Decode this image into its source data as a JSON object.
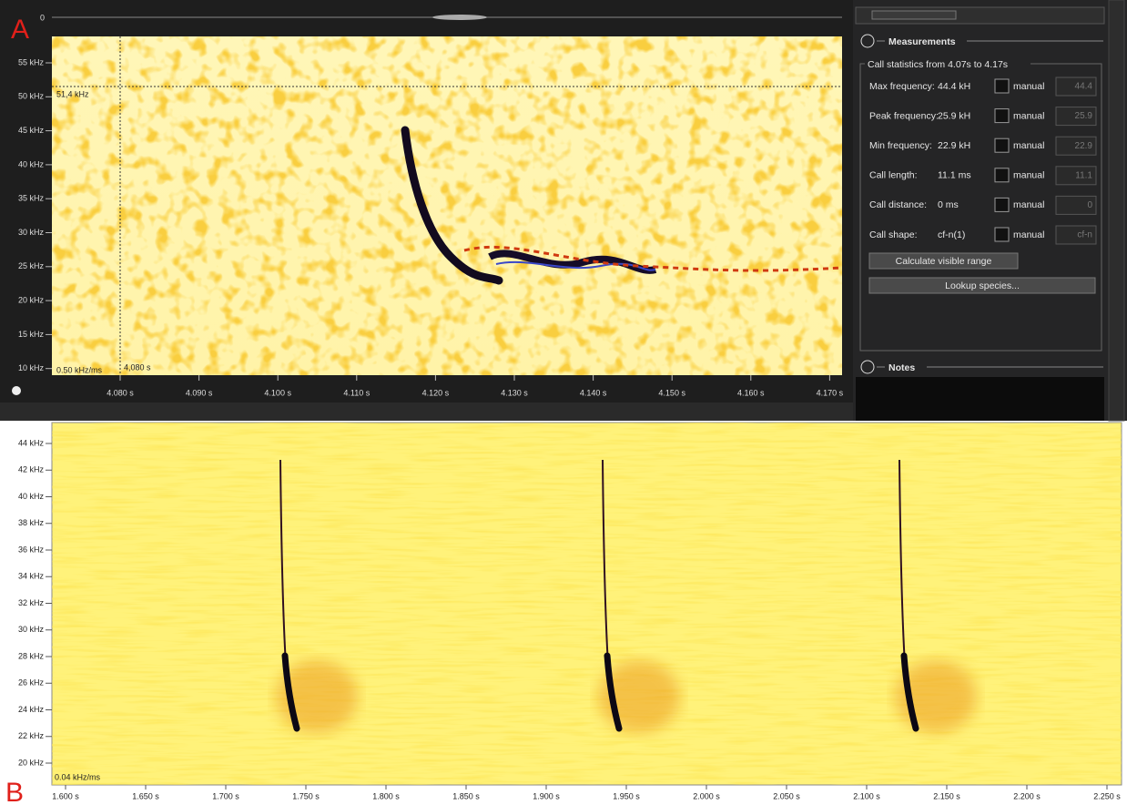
{
  "labels": {
    "panel_a": "A",
    "panel_b": "B"
  },
  "spectrogram_a": {
    "waveform_zero": "0",
    "y_ticks": [
      "55 kHz",
      "50 kHz",
      "45 kHz",
      "40 kHz",
      "35 kHz",
      "30 kHz",
      "25 kHz",
      "20 kHz",
      "15 kHz",
      "10 kHz"
    ],
    "x_ticks": [
      "4.080 s",
      "4.090 s",
      "4.100 s",
      "4.110 s",
      "4.120 s",
      "4.130 s",
      "4.140 s",
      "4.150 s",
      "4.160 s",
      "4.170 s"
    ],
    "cursor_frequency": "51,4 kHz",
    "cursor_time": "4,080 s",
    "scale": "0.50 kHz/ms"
  },
  "measurements": {
    "title": "Measurements",
    "range": "Call statistics from 4.07s to 4.17s",
    "rows": [
      {
        "label": "Max frequency:",
        "value": "44.4 kH",
        "manual": "manual",
        "input": "44.4"
      },
      {
        "label": "Peak frequency:",
        "value": "25.9 kH",
        "manual": "manual",
        "input": "25.9"
      },
      {
        "label": "Min frequency:",
        "value": "22.9 kH",
        "manual": "manual",
        "input": "22.9"
      },
      {
        "label": "Call length:",
        "value": "11.1 ms",
        "manual": "manual",
        "input": "11.1"
      },
      {
        "label": "Call distance:",
        "value": "0 ms",
        "manual": "manual",
        "input": "0"
      },
      {
        "label": "Call shape:",
        "value": "cf-n(1)",
        "manual": "manual",
        "input": "cf-n"
      }
    ],
    "buttons": [
      "Calculate visible range",
      "Lookup species..."
    ]
  },
  "notes": {
    "title": "Notes"
  },
  "spectrogram_b": {
    "y_ticks": [
      "44 kHz",
      "42 kHz",
      "40 kHz",
      "38 kHz",
      "36 kHz",
      "34 kHz",
      "32 kHz",
      "30 kHz",
      "28 kHz",
      "26 kHz",
      "24 kHz",
      "22 kHz",
      "20 kHz"
    ],
    "x_ticks": [
      "1.600 s",
      "1.650 s",
      "1.700 s",
      "1.750 s",
      "1.800 s",
      "1.850 s",
      "1.900 s",
      "1.950 s",
      "2.000 s",
      "2.050 s",
      "2.100 s",
      "2.150 s",
      "2.200 s",
      "2.250 s"
    ],
    "scale": "0.04 kHz/ms"
  }
}
